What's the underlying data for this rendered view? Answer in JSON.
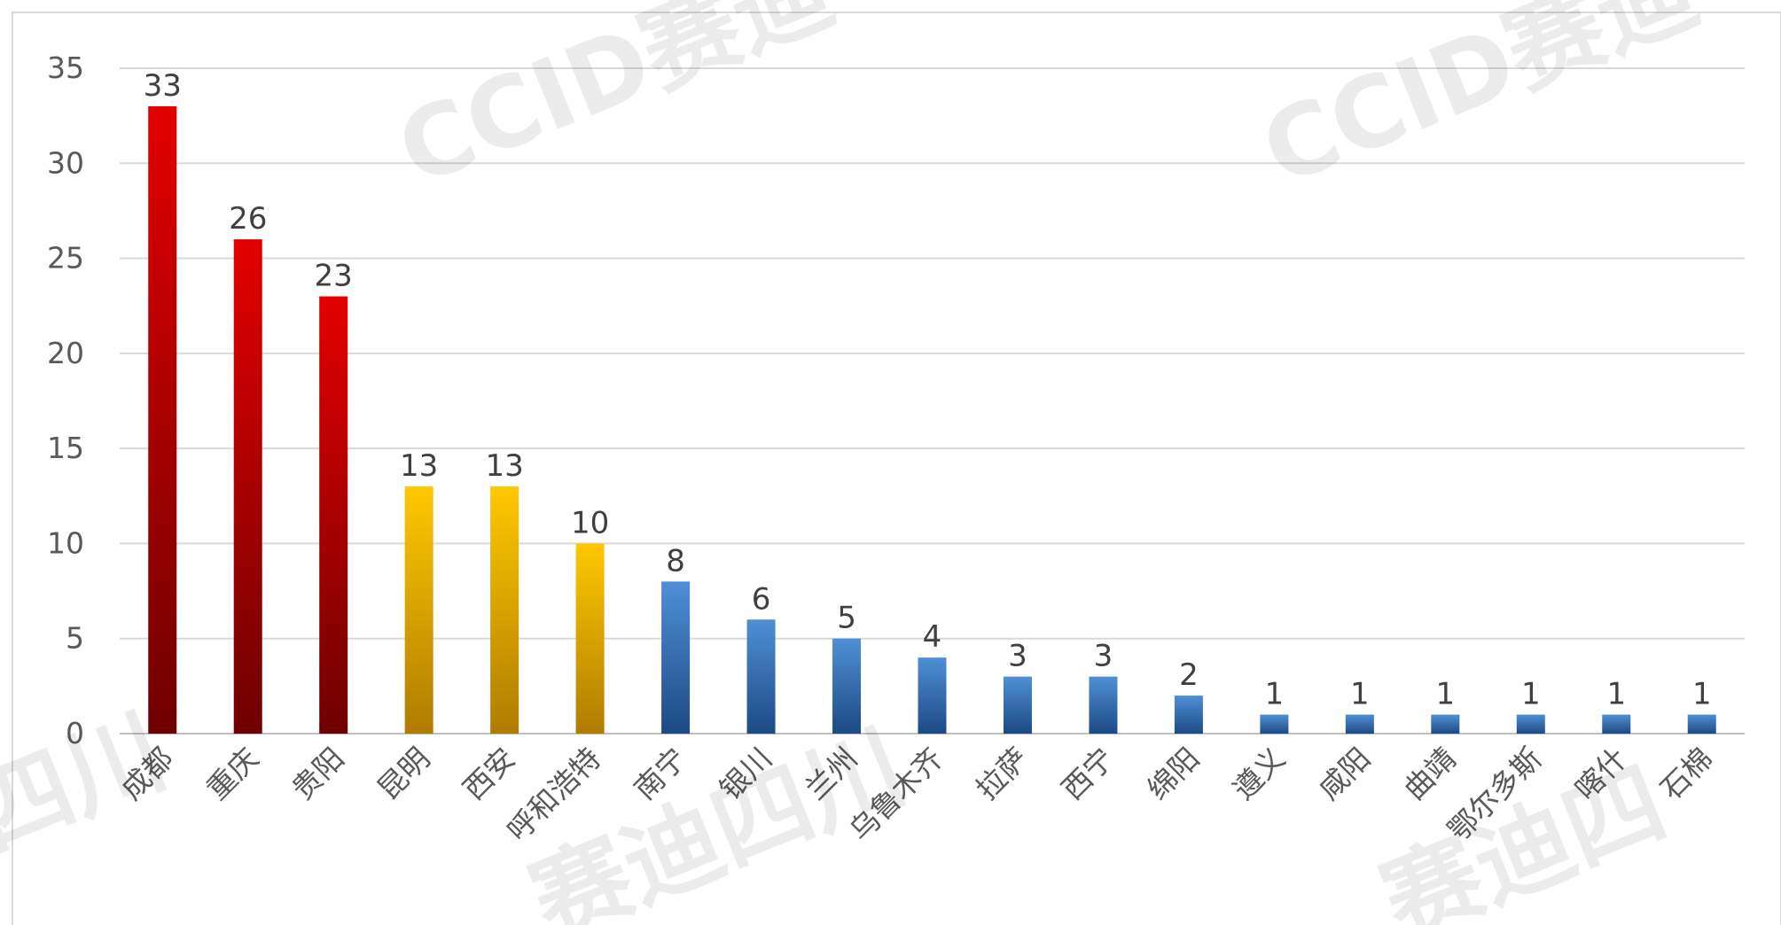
{
  "chart_data": {
    "type": "bar",
    "categories": [
      "成都",
      "重庆",
      "贵阳",
      "昆明",
      "西安",
      "呼和浩特",
      "南宁",
      "银川",
      "兰州",
      "乌鲁木齐",
      "拉萨",
      "西宁",
      "绵阳",
      "遵义",
      "咸阳",
      "曲靖",
      "鄂尔多斯",
      "喀什",
      "石棉"
    ],
    "values": [
      33,
      26,
      23,
      13,
      13,
      10,
      8,
      6,
      5,
      4,
      3,
      3,
      2,
      1,
      1,
      1,
      1,
      1,
      1
    ],
    "bar_color_groups": [
      "red",
      "red",
      "red",
      "yellow",
      "yellow",
      "yellow",
      "blue",
      "blue",
      "blue",
      "blue",
      "blue",
      "blue",
      "blue",
      "blue",
      "blue",
      "blue",
      "blue",
      "blue",
      "blue"
    ],
    "colors": {
      "red": [
        "#e30000",
        "#6e0000"
      ],
      "yellow": [
        "#ffc800",
        "#b07c00"
      ],
      "blue": [
        "#4f8fd6",
        "#1c4a84"
      ]
    },
    "ylim": [
      0,
      35
    ],
    "yticks": [
      0,
      5,
      10,
      15,
      20,
      25,
      30,
      35
    ],
    "grid": true,
    "legend": "none",
    "show_data_labels": true
  },
  "watermarks": {
    "ccid_1": "CCID赛迪",
    "ccid_2": "CCID赛迪",
    "sc_left": "四川",
    "sc_mid": "赛迪四川",
    "sc_right": "赛迪四"
  }
}
